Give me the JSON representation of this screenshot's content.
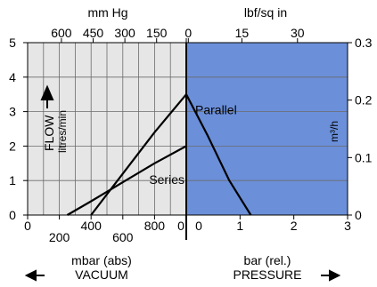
{
  "chart_data": {
    "type": "line",
    "colors": {
      "vacuum_bg": "#e6e6e6",
      "pressure_bg": "#6b8fd9",
      "grid": "#6b6b6b",
      "curve": "#000000"
    },
    "y_left": {
      "label": "FLOW",
      "unit": "litres/min",
      "ylim": [
        0,
        5
      ],
      "ticks": [
        "0",
        "1",
        "2",
        "3",
        "4",
        "5"
      ]
    },
    "y_right": {
      "unit": "m³/h",
      "ylim": [
        0,
        0.3
      ],
      "ticks": [
        "0",
        "0.1",
        "0.2",
        "0.3"
      ]
    },
    "top_left_axis": {
      "label": "mm Hg",
      "ticks": [
        "600",
        "450",
        "300",
        "150",
        "0"
      ],
      "tick_positions_mbar_abs": [
        213,
        413,
        613,
        813,
        1013
      ]
    },
    "top_right_axis": {
      "label": "lbf/sq in",
      "ticks": [
        "0",
        "15",
        "30"
      ],
      "tick_positions_bar": [
        0,
        1.034,
        2.068
      ]
    },
    "bottom_left_axis": {
      "label": "mbar (abs)",
      "caption": "VACUUM",
      "major_ticks": [
        "0",
        "400",
        "800"
      ],
      "minor_ticks": [
        "200",
        "600"
      ],
      "xlim": [
        0,
        1000
      ],
      "grid_step": 100
    },
    "bottom_right_axis": {
      "label": "bar (rel.)",
      "caption": "PRESSURE",
      "ticks": [
        "0",
        "0",
        "1",
        "2",
        "3"
      ],
      "xlim": [
        0,
        3
      ]
    },
    "series": [
      {
        "name": "Parallel",
        "vacuum_points": [
          [
            400,
            0
          ],
          [
            600,
            1.2
          ],
          [
            800,
            2.4
          ],
          [
            1000,
            3.5
          ]
        ],
        "pressure_points": [
          [
            0,
            3.5
          ],
          [
            0.4,
            2.3
          ],
          [
            0.8,
            1.0
          ],
          [
            1.2,
            0
          ]
        ]
      },
      {
        "name": "Series",
        "vacuum_points": [
          [
            250,
            0
          ],
          [
            400,
            0.4
          ],
          [
            600,
            0.95
          ],
          [
            800,
            1.5
          ],
          [
            1000,
            2.0
          ]
        ]
      }
    ]
  }
}
